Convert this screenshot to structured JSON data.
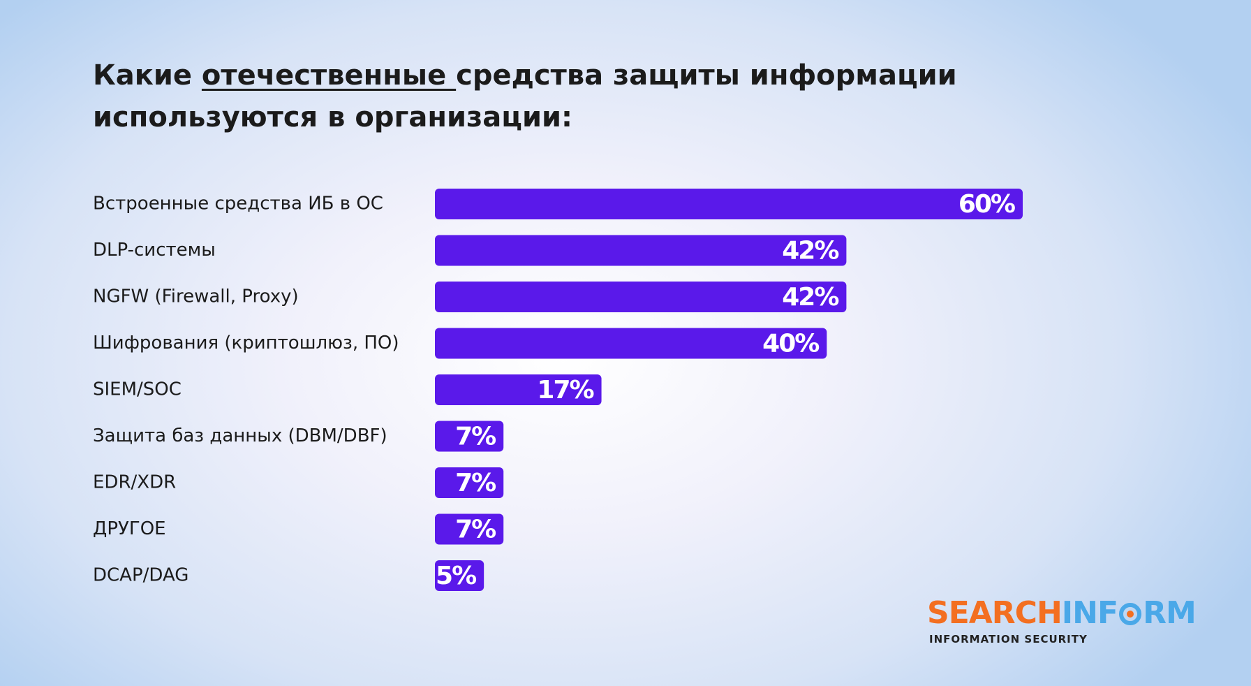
{
  "title": {
    "part1": "Какие ",
    "underlined": "отечественные ",
    "part2": "средства защиты информации используются в организации:"
  },
  "chart_data": {
    "type": "bar",
    "orientation": "horizontal",
    "categories": [
      "Встроенные средства ИБ в ОС",
      "DLP-системы",
      "NGFW (Firewall, Proxy)",
      "Шифрования (криптошлюз, ПО)",
      "SIEM/SOC",
      "Защита баз данных (DBM/DBF)",
      "EDR/XDR",
      "ДРУГОЕ",
      "DCAP/DAG"
    ],
    "values": [
      60,
      42,
      42,
      40,
      17,
      7,
      7,
      7,
      5
    ],
    "value_labels": [
      "60%",
      "42%",
      "42%",
      "40%",
      "17%",
      "7%",
      "7%",
      "7%",
      "5%"
    ],
    "unit": "%",
    "xlim": [
      0,
      60
    ],
    "grid": false,
    "legend": "none",
    "bar_color": "#5a19ea"
  },
  "brand": {
    "name_part1": "SEARCH",
    "name_part2": "INF",
    "name_part3": "RM",
    "tagline": "INFORMATION SECURITY",
    "color_orange": "#f36f21",
    "color_blue": "#4aa8e8"
  }
}
